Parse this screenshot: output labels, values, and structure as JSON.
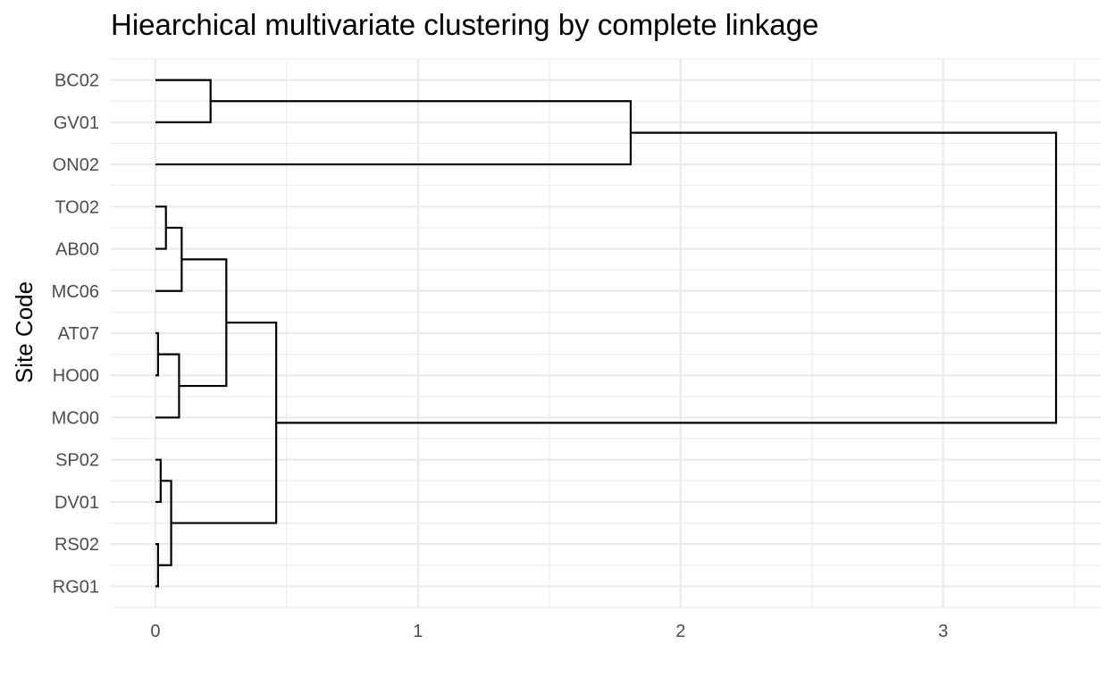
{
  "chart_data": {
    "type": "dendrogram",
    "title": "Hiearchical multivariate clustering by complete linkage",
    "xlabel": "",
    "ylabel": "Site Code",
    "xlim": [
      -0.17,
      3.6
    ],
    "x_ticks": [
      0,
      1,
      2,
      3
    ],
    "x_tick_labels": [
      "0",
      "1",
      "2",
      "3"
    ],
    "grid": true,
    "leaves": [
      "BC02",
      "GV01",
      "ON02",
      "TO02",
      "AB00",
      "MC06",
      "AT07",
      "HO00",
      "MC00",
      "SP02",
      "DV01",
      "RS02",
      "RG01"
    ],
    "merges": [
      {
        "id": "m1",
        "children": [
          "AT07",
          "HO00"
        ],
        "height": 0.01
      },
      {
        "id": "m2",
        "children": [
          "RS02",
          "RG01"
        ],
        "height": 0.01
      },
      {
        "id": "m3",
        "children": [
          "SP02",
          "DV01"
        ],
        "height": 0.02
      },
      {
        "id": "m4",
        "children": [
          "TO02",
          "AB00"
        ],
        "height": 0.04
      },
      {
        "id": "m5",
        "children": [
          "m3",
          "m2"
        ],
        "height": 0.06
      },
      {
        "id": "m6",
        "children": [
          "m1",
          "MC00"
        ],
        "height": 0.09
      },
      {
        "id": "m7",
        "children": [
          "m4",
          "MC06"
        ],
        "height": 0.1
      },
      {
        "id": "m8",
        "children": [
          "BC02",
          "GV01"
        ],
        "height": 0.21
      },
      {
        "id": "m9",
        "children": [
          "m7",
          "m6"
        ],
        "height": 0.27
      },
      {
        "id": "m10",
        "children": [
          "m9",
          "m5"
        ],
        "height": 0.46
      },
      {
        "id": "m11",
        "children": [
          "m8",
          "ON02"
        ],
        "height": 1.81
      },
      {
        "id": "m12",
        "children": [
          "m11",
          "m10"
        ],
        "height": 3.43
      }
    ]
  }
}
